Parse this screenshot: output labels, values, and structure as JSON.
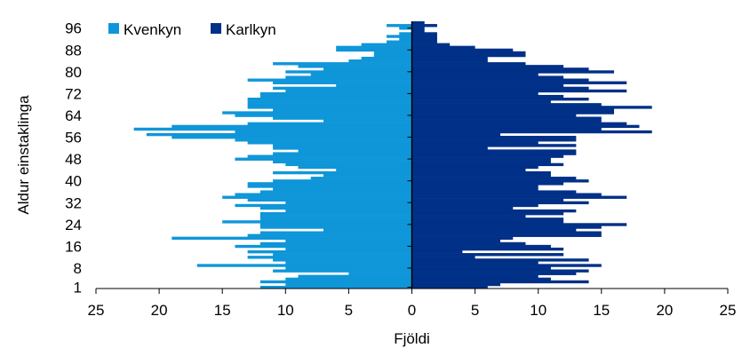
{
  "chart_data": {
    "type": "bar",
    "orientation": "horizontal",
    "title": "",
    "xlabel": "Fjöldi",
    "ylabel": "Aldur einstaklinga",
    "xlim": [
      -25,
      25
    ],
    "ylim": [
      1,
      99
    ],
    "x_tick_values": [
      -25,
      -20,
      -15,
      -10,
      -5,
      0,
      5,
      10,
      15,
      20,
      25
    ],
    "x_tick_labels": [
      "25",
      "20",
      "15",
      "10",
      "5",
      "0",
      "5",
      "10",
      "15",
      "20",
      "25"
    ],
    "y_tick_values": [
      1,
      8,
      16,
      24,
      32,
      40,
      48,
      56,
      64,
      72,
      80,
      88,
      96
    ],
    "y_tick_labels": [
      "1",
      "8",
      "16",
      "24",
      "32",
      "40",
      "48",
      "56",
      "64",
      "72",
      "80",
      "88",
      "96"
    ],
    "grid": false,
    "legend": {
      "position": "top-left"
    },
    "colors": {
      "Kvenkyn": "#0f96d9",
      "Karlkyn": "#003087"
    },
    "ages": [
      1,
      2,
      3,
      4,
      5,
      6,
      7,
      8,
      9,
      10,
      11,
      12,
      13,
      14,
      15,
      16,
      17,
      18,
      19,
      20,
      21,
      22,
      23,
      24,
      25,
      26,
      27,
      28,
      29,
      30,
      31,
      32,
      33,
      34,
      35,
      36,
      37,
      38,
      39,
      40,
      41,
      42,
      43,
      44,
      45,
      46,
      47,
      48,
      49,
      50,
      51,
      52,
      53,
      54,
      55,
      56,
      57,
      58,
      59,
      60,
      61,
      62,
      63,
      64,
      65,
      66,
      67,
      68,
      69,
      70,
      71,
      72,
      73,
      74,
      75,
      76,
      77,
      78,
      79,
      80,
      81,
      82,
      83,
      84,
      85,
      86,
      87,
      88,
      89,
      90,
      91,
      92,
      93,
      94,
      95,
      96,
      97,
      98
    ],
    "series": [
      {
        "name": "Kvenkyn",
        "values": [
          12,
          10,
          12,
          10,
          9,
          5,
          11,
          10,
          17,
          10,
          11,
          13,
          11,
          13,
          10,
          14,
          12,
          10,
          19,
          13,
          12,
          7,
          12,
          12,
          15,
          12,
          12,
          12,
          10,
          12,
          14,
          10,
          13,
          15,
          14,
          12,
          11,
          13,
          13,
          11,
          8,
          7,
          11,
          6,
          9,
          10,
          11,
          14,
          13,
          11,
          9,
          11,
          11,
          13,
          14,
          19,
          21,
          14,
          22,
          19,
          13,
          7,
          11,
          14,
          15,
          11,
          13,
          13,
          13,
          13,
          12,
          12,
          10,
          11,
          6,
          11,
          13,
          10,
          8,
          10,
          7,
          9,
          11,
          5,
          4,
          3,
          3,
          6,
          6,
          4,
          2,
          1,
          2,
          1,
          0,
          1,
          2,
          0
        ]
      },
      {
        "name": "Karlkyn",
        "values": [
          6,
          7,
          14,
          11,
          10,
          13,
          14,
          11,
          15,
          10,
          14,
          5,
          12,
          4,
          12,
          11,
          9,
          7,
          8,
          15,
          15,
          13,
          15,
          17,
          12,
          12,
          9,
          12,
          13,
          8,
          10,
          14,
          12,
          17,
          15,
          13,
          10,
          10,
          12,
          14,
          13,
          11,
          11,
          9,
          10,
          12,
          11,
          11,
          12,
          13,
          13,
          6,
          13,
          10,
          13,
          13,
          7,
          19,
          15,
          18,
          17,
          15,
          15,
          13,
          16,
          16,
          19,
          15,
          11,
          14,
          12,
          10,
          17,
          14,
          12,
          17,
          14,
          12,
          10,
          16,
          14,
          12,
          9,
          6,
          6,
          9,
          9,
          8,
          5,
          3,
          2,
          2,
          2,
          2,
          1,
          1,
          2,
          1
        ]
      }
    ]
  }
}
